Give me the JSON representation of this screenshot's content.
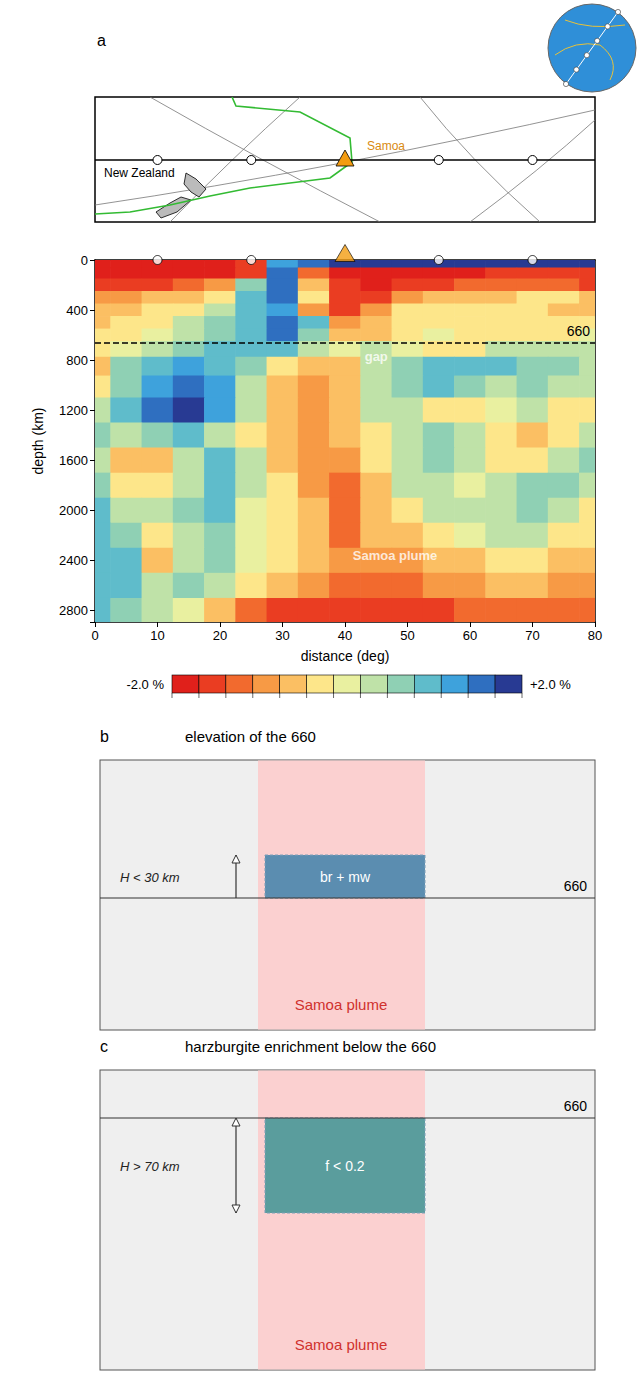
{
  "chart_data": {
    "type": "heatmap",
    "x_label": "distance (deg)",
    "y_label": "depth (km)",
    "xlim": [
      0,
      80
    ],
    "xticks": [
      0,
      10,
      20,
      30,
      40,
      50,
      60,
      70,
      80
    ],
    "ylim": [
      0,
      2890
    ],
    "yticks": [
      0,
      400,
      800,
      1200,
      1600,
      2000,
      2400,
      2800
    ],
    "x": [
      0,
      5,
      10,
      15,
      20,
      25,
      30,
      35,
      40,
      45,
      50,
      55,
      60,
      65,
      70,
      75,
      80
    ],
    "depth": [
      25,
      100,
      200,
      300,
      400,
      500,
      600,
      700,
      850,
      1000,
      1200,
      1400,
      1600,
      1800,
      2000,
      2200,
      2400,
      2600,
      2800
    ],
    "values": [
      [
        -1.8,
        -1.8,
        -1.8,
        -1.8,
        -1.8,
        -1.5,
        1.2,
        1.5,
        1.8,
        1.8,
        1.8,
        1.8,
        1.8,
        1.8,
        1.8,
        1.8,
        1.8
      ],
      [
        -1.8,
        -1.8,
        -1.8,
        -1.8,
        -1.8,
        -1.5,
        1.4,
        -1.2,
        -1.8,
        -1.8,
        -1.8,
        -1.8,
        -1.8,
        -1.5,
        -1.5,
        -1.5,
        -1.5
      ],
      [
        -1.5,
        -1.5,
        -1.5,
        -1.2,
        -0.9,
        0.5,
        1.4,
        -0.6,
        -1.5,
        -1.8,
        -1.5,
        -1.5,
        -1.2,
        -1.2,
        -1.2,
        -1.2,
        -1.5
      ],
      [
        -0.9,
        -0.9,
        -0.6,
        -0.6,
        -0.3,
        0.8,
        1.6,
        -0.3,
        -1.5,
        -1.5,
        -0.9,
        -0.6,
        -0.5,
        -0.5,
        -0.3,
        -0.3,
        -0.6
      ],
      [
        -0.6,
        -0.6,
        -0.3,
        -0.2,
        0.2,
        0.8,
        1.1,
        -0.9,
        -1.5,
        -0.9,
        -0.3,
        -0.3,
        -0.3,
        -0.3,
        -0.3,
        -0.5,
        -0.5
      ],
      [
        -0.5,
        -0.3,
        -0.2,
        0.3,
        0.6,
        0.9,
        1.6,
        0.8,
        -0.9,
        -0.6,
        -0.2,
        -0.2,
        -0.3,
        -0.3,
        -0.2,
        -0.3,
        -0.3
      ],
      [
        -0.3,
        -0.2,
        0.1,
        0.4,
        0.7,
        1.0,
        1.4,
        0.5,
        -0.6,
        -0.6,
        -0.2,
        0,
        -0.2,
        -0.3,
        -0.3,
        -0.2,
        0
      ],
      [
        -0.3,
        0,
        0.3,
        0.6,
        0.8,
        1.0,
        0.8,
        0.3,
        0,
        0.2,
        0,
        -0.3,
        -0.2,
        0.2,
        0.2,
        0.2,
        0.3
      ],
      [
        -0.6,
        0.5,
        0.9,
        1.1,
        0.9,
        0.5,
        -0.3,
        -0.5,
        -0.6,
        0.2,
        0.5,
        0.8,
        0.8,
        0.8,
        0.6,
        0.5,
        0.2
      ],
      [
        -0.3,
        0.5,
        1.1,
        1.5,
        1.1,
        0.3,
        -0.6,
        -0.9,
        -0.6,
        0.2,
        0.6,
        0.8,
        0.5,
        0.2,
        0.5,
        0.3,
        0.2
      ],
      [
        0.2,
        0.8,
        1.4,
        1.8,
        1.1,
        0.2,
        -0.6,
        -0.9,
        -0.6,
        0.3,
        0.3,
        -0.3,
        -0.3,
        0,
        0.2,
        -0.3,
        -0.3
      ],
      [
        0.5,
        0.2,
        0.5,
        0.8,
        0.2,
        -0.3,
        -0.6,
        -0.9,
        -0.6,
        -0.3,
        0.2,
        0.5,
        0.2,
        -0.3,
        -0.6,
        -0.3,
        0.2
      ],
      [
        0.2,
        -0.6,
        -0.6,
        0.2,
        0.8,
        0.2,
        -0.6,
        -0.9,
        -0.9,
        -0.3,
        0.3,
        0.5,
        0.2,
        -0.3,
        -0.2,
        0.2,
        0.5
      ],
      [
        0.5,
        -0.3,
        -0.3,
        0.3,
        0.8,
        0.3,
        -0.3,
        -0.9,
        -1.2,
        -0.6,
        0.2,
        0.3,
        0,
        0.2,
        0.5,
        0.5,
        0.2
      ],
      [
        0.8,
        0.3,
        0.2,
        0.5,
        0.8,
        0,
        -0.3,
        -0.6,
        -1.2,
        -0.6,
        -0.3,
        0.2,
        0.2,
        0.3,
        0.5,
        0.2,
        -0.3
      ],
      [
        0.8,
        0.5,
        -0.3,
        0.3,
        0.6,
        0,
        -0.3,
        -0.6,
        -1.2,
        -0.6,
        -0.6,
        -0.3,
        0,
        0.2,
        0.2,
        -0.3,
        -0.3
      ],
      [
        1.0,
        0.8,
        -0.6,
        0.3,
        0.5,
        0,
        -0.3,
        -0.6,
        -0.9,
        -0.9,
        -0.9,
        -0.6,
        -0.6,
        -0.3,
        -0.3,
        -0.6,
        -0.6
      ],
      [
        1.0,
        0.8,
        0.2,
        0.5,
        0.2,
        -0.3,
        -0.6,
        -0.9,
        -1.2,
        -1.2,
        -1.2,
        -0.9,
        -0.9,
        -0.6,
        -0.6,
        -0.9,
        -0.9
      ],
      [
        0.8,
        0.5,
        0.3,
        0,
        -0.6,
        -1.2,
        -1.5,
        -1.5,
        -1.5,
        -1.5,
        -1.5,
        -1.5,
        -1.2,
        -1.2,
        -1.2,
        -1.2,
        -1.2
      ]
    ],
    "colorbar": {
      "range": [
        -2,
        2
      ],
      "ticks": [
        {
          "value": -2,
          "label": "-2.0 %"
        },
        {
          "value": 2,
          "label": "+2.0 %"
        }
      ],
      "colors": [
        "#e0201b",
        "#ea3d22",
        "#f26a2e",
        "#f79a45",
        "#fbbf63",
        "#fde68a",
        "#e9f0a0",
        "#bfe2a8",
        "#8fd0b4",
        "#5fbccb",
        "#3ea2dc",
        "#2f6fc0",
        "#283a93"
      ]
    },
    "discontinuity": {
      "depth": 660,
      "label": "660"
    },
    "annotations": [
      "gap",
      "Samoa plume"
    ],
    "profile_points": [
      10,
      25,
      55,
      70
    ],
    "hotspot": {
      "name": "Samoa",
      "distance": 40
    }
  },
  "panel_a": {
    "label": "a",
    "map_labels": [
      "New Zealand"
    ]
  },
  "panel_b": {
    "label": "b",
    "title": "elevation of the 660",
    "height_label": "H < 30 km",
    "block_label": "br + mw",
    "line_label": "660",
    "plume_label": "Samoa plume"
  },
  "panel_c": {
    "label": "c",
    "title": "harzburgite enrichment below the 660",
    "height_label": "H > 70 km",
    "block_label": "f < 0.2",
    "line_label": "660",
    "plume_label": "Samoa plume"
  }
}
